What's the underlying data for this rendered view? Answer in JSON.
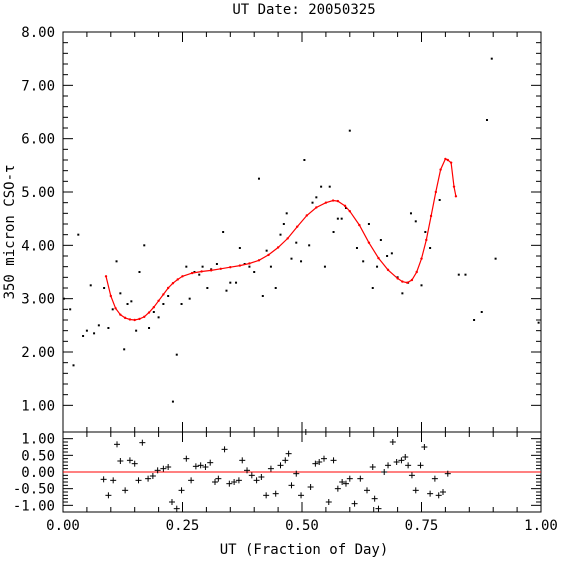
{
  "chart_data": [
    {
      "type": "scatter",
      "title": "UT Date: 20050325",
      "xlabel": "",
      "ylabel": "350 micron CSO-τ",
      "xlim": [
        0,
        1
      ],
      "ylim": [
        0.5,
        8.0
      ],
      "y_ticks": [
        "1.00",
        "2.00",
        "3.00",
        "4.00",
        "5.00",
        "6.00",
        "7.00",
        "8.00"
      ],
      "fit_color": "#ff0000",
      "point_color": "#000000",
      "points": [
        [
          0.002,
          3.0
        ],
        [
          0.015,
          2.8
        ],
        [
          0.022,
          1.75
        ],
        [
          0.032,
          4.2
        ],
        [
          0.042,
          2.3
        ],
        [
          0.05,
          2.4
        ],
        [
          0.058,
          3.25
        ],
        [
          0.065,
          2.35
        ],
        [
          0.075,
          2.5
        ],
        [
          0.086,
          3.2
        ],
        [
          0.095,
          2.45
        ],
        [
          0.104,
          2.8
        ],
        [
          0.112,
          3.7
        ],
        [
          0.12,
          3.1
        ],
        [
          0.128,
          2.05
        ],
        [
          0.135,
          2.9
        ],
        [
          0.143,
          2.95
        ],
        [
          0.153,
          2.4
        ],
        [
          0.16,
          3.5
        ],
        [
          0.17,
          4.0
        ],
        [
          0.18,
          2.45
        ],
        [
          0.19,
          2.75
        ],
        [
          0.2,
          2.65
        ],
        [
          0.21,
          2.9
        ],
        [
          0.22,
          3.05
        ],
        [
          0.23,
          1.07
        ],
        [
          0.238,
          1.95
        ],
        [
          0.248,
          2.9
        ],
        [
          0.258,
          3.6
        ],
        [
          0.265,
          3.0
        ],
        [
          0.275,
          3.5
        ],
        [
          0.285,
          3.45
        ],
        [
          0.292,
          3.6
        ],
        [
          0.302,
          3.2
        ],
        [
          0.31,
          3.55
        ],
        [
          0.322,
          3.65
        ],
        [
          0.335,
          4.25
        ],
        [
          0.342,
          3.15
        ],
        [
          0.35,
          3.3
        ],
        [
          0.362,
          3.3
        ],
        [
          0.37,
          3.95
        ],
        [
          0.38,
          3.65
        ],
        [
          0.39,
          3.6
        ],
        [
          0.4,
          3.5
        ],
        [
          0.41,
          5.25
        ],
        [
          0.418,
          3.05
        ],
        [
          0.426,
          3.9
        ],
        [
          0.435,
          3.6
        ],
        [
          0.445,
          3.2
        ],
        [
          0.455,
          4.2
        ],
        [
          0.462,
          4.4
        ],
        [
          0.468,
          4.6
        ],
        [
          0.478,
          3.75
        ],
        [
          0.488,
          4.05
        ],
        [
          0.498,
          3.7
        ],
        [
          0.505,
          5.6
        ],
        [
          0.515,
          4.0
        ],
        [
          0.522,
          4.8
        ],
        [
          0.53,
          4.9
        ],
        [
          0.54,
          5.1
        ],
        [
          0.548,
          3.6
        ],
        [
          0.558,
          5.1
        ],
        [
          0.566,
          4.25
        ],
        [
          0.575,
          4.5
        ],
        [
          0.583,
          4.5
        ],
        [
          0.592,
          4.7
        ],
        [
          0.6,
          6.15
        ],
        [
          0.615,
          3.95
        ],
        [
          0.628,
          3.7
        ],
        [
          0.64,
          4.4
        ],
        [
          0.648,
          3.2
        ],
        [
          0.657,
          3.6
        ],
        [
          0.665,
          4.1
        ],
        [
          0.678,
          3.8
        ],
        [
          0.688,
          3.85
        ],
        [
          0.7,
          3.4
        ],
        [
          0.71,
          3.1
        ],
        [
          0.722,
          3.3
        ],
        [
          0.728,
          4.6
        ],
        [
          0.738,
          4.45
        ],
        [
          0.75,
          3.25
        ],
        [
          0.758,
          4.25
        ],
        [
          0.768,
          3.95
        ],
        [
          0.788,
          4.85
        ],
        [
          0.828,
          3.45
        ],
        [
          0.842,
          3.45
        ],
        [
          0.86,
          2.6
        ],
        [
          0.876,
          2.75
        ],
        [
          0.887,
          6.35
        ],
        [
          0.897,
          7.5
        ],
        [
          0.905,
          3.75
        ],
        [
          0.995,
          2.55
        ]
      ],
      "fit_curve": [
        [
          0.09,
          3.42
        ],
        [
          0.1,
          3.05
        ],
        [
          0.11,
          2.82
        ],
        [
          0.12,
          2.7
        ],
        [
          0.13,
          2.64
        ],
        [
          0.14,
          2.61
        ],
        [
          0.15,
          2.6
        ],
        [
          0.16,
          2.62
        ],
        [
          0.17,
          2.66
        ],
        [
          0.18,
          2.74
        ],
        [
          0.19,
          2.84
        ],
        [
          0.2,
          2.96
        ],
        [
          0.21,
          3.08
        ],
        [
          0.22,
          3.2
        ],
        [
          0.23,
          3.29
        ],
        [
          0.24,
          3.36
        ],
        [
          0.25,
          3.42
        ],
        [
          0.27,
          3.48
        ],
        [
          0.29,
          3.51
        ],
        [
          0.31,
          3.53
        ],
        [
          0.33,
          3.56
        ],
        [
          0.35,
          3.59
        ],
        [
          0.37,
          3.62
        ],
        [
          0.39,
          3.66
        ],
        [
          0.41,
          3.72
        ],
        [
          0.43,
          3.82
        ],
        [
          0.45,
          3.96
        ],
        [
          0.47,
          4.13
        ],
        [
          0.49,
          4.35
        ],
        [
          0.51,
          4.56
        ],
        [
          0.53,
          4.71
        ],
        [
          0.55,
          4.8
        ],
        [
          0.565,
          4.84
        ],
        [
          0.575,
          4.83
        ],
        [
          0.59,
          4.74
        ],
        [
          0.6,
          4.64
        ],
        [
          0.62,
          4.38
        ],
        [
          0.64,
          4.05
        ],
        [
          0.66,
          3.76
        ],
        [
          0.68,
          3.54
        ],
        [
          0.7,
          3.38
        ],
        [
          0.71,
          3.32
        ],
        [
          0.72,
          3.3
        ],
        [
          0.73,
          3.35
        ],
        [
          0.74,
          3.5
        ],
        [
          0.75,
          3.75
        ],
        [
          0.76,
          4.1
        ],
        [
          0.77,
          4.55
        ],
        [
          0.78,
          5.0
        ],
        [
          0.79,
          5.42
        ],
        [
          0.8,
          5.62
        ],
        [
          0.805,
          5.6
        ],
        [
          0.812,
          5.55
        ],
        [
          0.818,
          5.1
        ],
        [
          0.822,
          4.92
        ]
      ]
    },
    {
      "type": "scatter",
      "xlabel": "UT (Fraction of Day)",
      "ylabel": "",
      "xlim": [
        0,
        1
      ],
      "ylim": [
        -1.2,
        1.2
      ],
      "x_ticks": [
        "0.00",
        "0.25",
        "0.50",
        "0.75",
        "1.00"
      ],
      "y_ticks": [
        "1.00",
        "0.50",
        "0.00",
        "-0.50",
        "-1.00"
      ],
      "zero_line_color": "#ff0000",
      "residuals": [
        [
          0.085,
          -0.22
        ],
        [
          0.095,
          -0.7
        ],
        [
          0.105,
          -0.25
        ],
        [
          0.113,
          0.83
        ],
        [
          0.12,
          0.33
        ],
        [
          0.13,
          -0.55
        ],
        [
          0.14,
          0.35
        ],
        [
          0.15,
          0.25
        ],
        [
          0.158,
          -0.25
        ],
        [
          0.166,
          0.88
        ],
        [
          0.178,
          -0.2
        ],
        [
          0.188,
          -0.12
        ],
        [
          0.198,
          0.05
        ],
        [
          0.21,
          0.1
        ],
        [
          0.22,
          0.15
        ],
        [
          0.228,
          -0.9
        ],
        [
          0.238,
          -1.1
        ],
        [
          0.248,
          -0.55
        ],
        [
          0.258,
          0.4
        ],
        [
          0.268,
          -0.25
        ],
        [
          0.278,
          0.17
        ],
        [
          0.288,
          0.2
        ],
        [
          0.298,
          0.15
        ],
        [
          0.308,
          0.28
        ],
        [
          0.318,
          -0.3
        ],
        [
          0.325,
          -0.2
        ],
        [
          0.338,
          0.68
        ],
        [
          0.348,
          -0.35
        ],
        [
          0.358,
          -0.3
        ],
        [
          0.368,
          -0.25
        ],
        [
          0.375,
          0.35
        ],
        [
          0.385,
          0.05
        ],
        [
          0.395,
          -0.1
        ],
        [
          0.405,
          -0.25
        ],
        [
          0.415,
          -0.15
        ],
        [
          0.425,
          -0.7
        ],
        [
          0.435,
          0.1
        ],
        [
          0.445,
          -0.65
        ],
        [
          0.455,
          0.2
        ],
        [
          0.465,
          0.35
        ],
        [
          0.472,
          0.55
        ],
        [
          0.478,
          -0.4
        ],
        [
          0.488,
          -0.05
        ],
        [
          0.498,
          -0.7
        ],
        [
          0.508,
          1.2
        ],
        [
          0.518,
          -0.45
        ],
        [
          0.528,
          0.25
        ],
        [
          0.536,
          0.3
        ],
        [
          0.546,
          0.4
        ],
        [
          0.556,
          -0.9
        ],
        [
          0.566,
          0.35
        ],
        [
          0.575,
          -0.5
        ],
        [
          0.584,
          -0.3
        ],
        [
          0.592,
          -0.35
        ],
        [
          0.6,
          -0.2
        ],
        [
          0.61,
          -0.95
        ],
        [
          0.622,
          -0.2
        ],
        [
          0.636,
          -0.55
        ],
        [
          0.648,
          0.15
        ],
        [
          0.652,
          -0.8
        ],
        [
          0.66,
          -1.1
        ],
        [
          0.672,
          0.0
        ],
        [
          0.68,
          0.2
        ],
        [
          0.69,
          0.9
        ],
        [
          0.698,
          0.3
        ],
        [
          0.708,
          0.35
        ],
        [
          0.716,
          0.45
        ],
        [
          0.722,
          0.2
        ],
        [
          0.73,
          -0.1
        ],
        [
          0.738,
          -0.55
        ],
        [
          0.748,
          0.2
        ],
        [
          0.756,
          0.75
        ],
        [
          0.768,
          -0.65
        ],
        [
          0.778,
          -0.2
        ],
        [
          0.786,
          -0.7
        ],
        [
          0.795,
          -0.6
        ],
        [
          0.805,
          -0.05
        ]
      ]
    }
  ]
}
